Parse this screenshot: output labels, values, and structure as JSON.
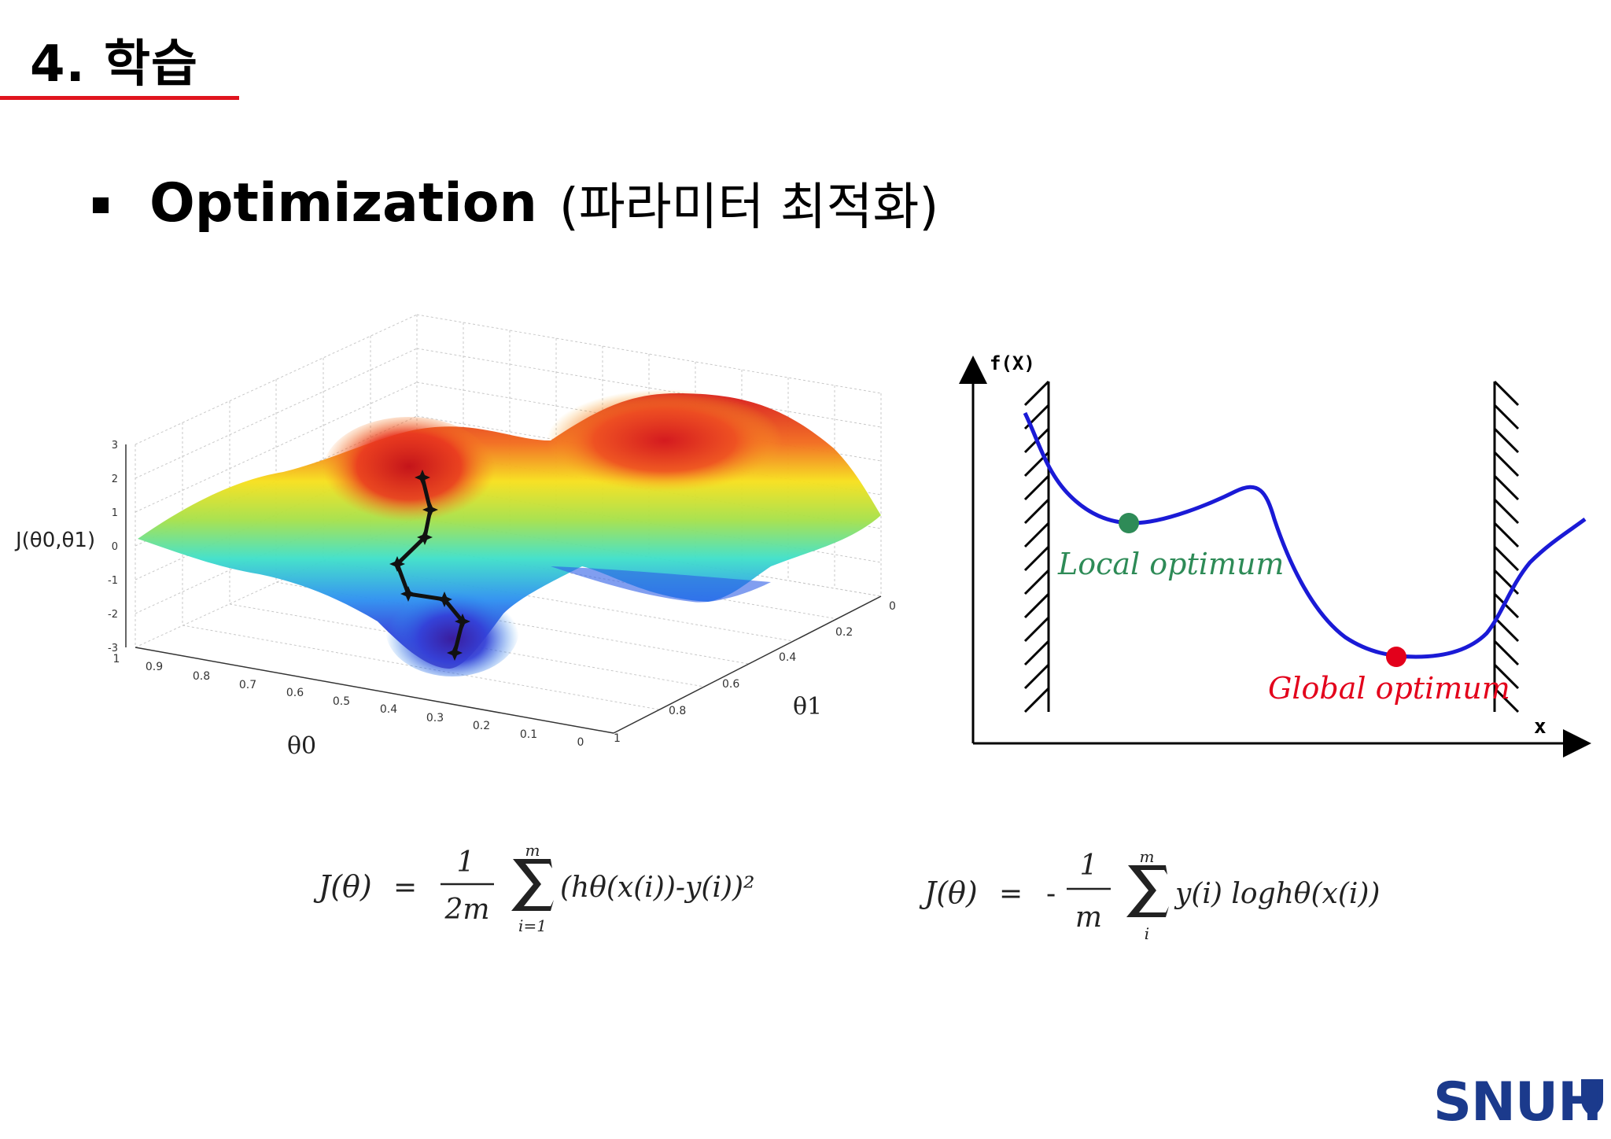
{
  "slide": {
    "section_title": "4. 학습",
    "bullet_main": "Optimization",
    "bullet_sub": "(파라미터 최적화)"
  },
  "surface_plot": {
    "z_label": "J(θ0,θ1)",
    "x_label": "θ0",
    "y_label": "θ1",
    "z_ticks": [
      "3",
      "2",
      "1",
      "0",
      "-1",
      "-2",
      "-3"
    ],
    "x_ticks": [
      "1",
      "0.9",
      "0.8",
      "0.7",
      "0.6",
      "0.5",
      "0.4",
      "0.3",
      "0.2",
      "0.1",
      "0"
    ],
    "y_ticks": [
      "1",
      "0.8",
      "0.6",
      "0.4",
      "0.2",
      "0"
    ]
  },
  "curve_plot": {
    "y_axis_label": "f(X)",
    "x_axis_label": "x",
    "local_label": "Local optimum",
    "global_label": "Global optimum",
    "local_color": "#2e8b57",
    "global_color": "#e3001b",
    "curve_color": "#1a1ad6"
  },
  "equations": {
    "mse": {
      "lhs": "J(θ)",
      "eq": "=",
      "num": "1",
      "den": "2m",
      "sum_top": "m",
      "sum_bottom": "i=1",
      "body": "(hθ(x(i))-y(i))²"
    },
    "ce": {
      "lhs": "J(θ)",
      "eq": "=",
      "minus": "-",
      "num": "1",
      "den": "m",
      "sum_top": "m",
      "sum_bottom": "i",
      "body": "y(i) loghθ(x(i))"
    }
  },
  "logo": {
    "text": "SNUH",
    "color": "#1b3a8c"
  }
}
